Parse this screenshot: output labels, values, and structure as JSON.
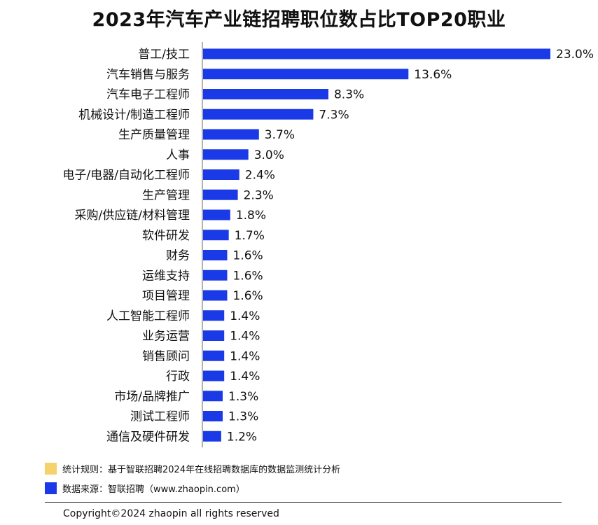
{
  "page": {
    "title": "2023年汽车产业链招聘职位数占比TOP20职业"
  },
  "chart_data": {
    "type": "bar",
    "orientation": "horizontal",
    "title": "2023年汽车产业链招聘职位数占比TOP20职业",
    "categories": [
      "普工/技工",
      "汽车销售与服务",
      "汽车电子工程师",
      "机械设计/制造工程师",
      "生产质量管理",
      "人事",
      "电子/电器/自动化工程师",
      "生产管理",
      "采购/供应链/材料管理",
      "软件研发",
      "财务",
      "运维支持",
      "项目管理",
      "人工智能工程师",
      "业务运营",
      "销售顾问",
      "行政",
      "市场/品牌推广",
      "测试工程师",
      "通信及硬件研发"
    ],
    "values": [
      23.0,
      13.6,
      8.3,
      7.3,
      3.7,
      3.0,
      2.4,
      2.3,
      1.8,
      1.7,
      1.6,
      1.6,
      1.6,
      1.4,
      1.4,
      1.4,
      1.4,
      1.3,
      1.3,
      1.2
    ],
    "value_labels": [
      "23.0%",
      "13.6%",
      "8.3%",
      "7.3%",
      "3.7%",
      "3.0%",
      "2.4%",
      "2.3%",
      "1.8%",
      "1.7%",
      "1.6%",
      "1.6%",
      "1.6%",
      "1.4%",
      "1.4%",
      "1.4%",
      "1.4%",
      "1.3%",
      "1.3%",
      "1.2%"
    ],
    "unit": "%",
    "bar_color": "#1a3ae8",
    "grid": false,
    "legend": false
  },
  "notes": [
    {
      "text": "统计规则：基于智联招聘2024年在线招聘数据库的数据监测统计分析",
      "color": "#f5d26b"
    },
    {
      "text": "数据来源：智联招聘（www.zhaopin.com）",
      "color": "#1a3ae8"
    }
  ],
  "footer": {
    "copyright": "Copyright©2024 zhaopin all rights reserved"
  }
}
